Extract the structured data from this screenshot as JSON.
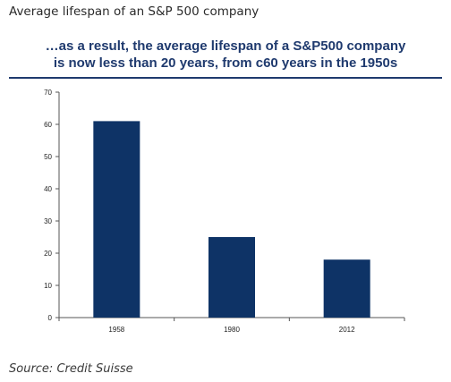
{
  "page": {
    "heading": "Average lifespan of an S&P 500 company",
    "source": "Source: Credit Suisse"
  },
  "slide": {
    "title_line1": "…as a result, the average lifespan of a S&P500 company",
    "title_line2": "is now less than 20 years, from c60 years in the 1950s"
  },
  "colors": {
    "bar": "#0e3366",
    "title": "#1f3a6e"
  },
  "chart_data": {
    "type": "bar",
    "categories": [
      "1958",
      "1980",
      "2012"
    ],
    "values": [
      61,
      25,
      18
    ],
    "ylim": [
      0,
      70
    ],
    "yticks": [
      0,
      10,
      20,
      30,
      40,
      50,
      60,
      70
    ],
    "title": "",
    "xlabel": "",
    "ylabel": "",
    "grid": false
  }
}
